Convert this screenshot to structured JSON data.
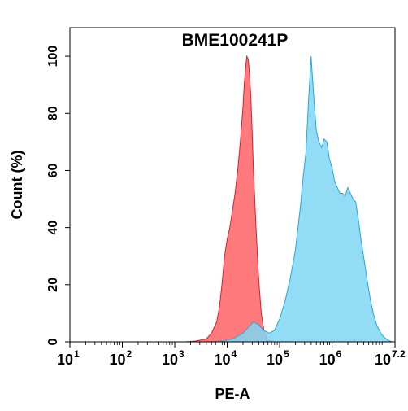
{
  "chart_data": {
    "type": "area",
    "title": "BME100241P",
    "xlabel": "PE-A",
    "ylabel": "Count  (%)",
    "xscale": "log",
    "xlim": [
      10,
      15848931.9
    ],
    "ylim": [
      0,
      110
    ],
    "grid": false,
    "legend": "none",
    "yticks": [
      {
        "value": 0,
        "label": "0"
      },
      {
        "value": 20,
        "label": "20"
      },
      {
        "value": 40,
        "label": "40"
      },
      {
        "value": 60,
        "label": "60"
      },
      {
        "value": 80,
        "label": "80"
      },
      {
        "value": 100,
        "label": "100"
      }
    ],
    "xticks": [
      {
        "value": 10,
        "base": "10",
        "exp": "1"
      },
      {
        "value": 100,
        "base": "10",
        "exp": "2"
      },
      {
        "value": 1000,
        "base": "10",
        "exp": "3"
      },
      {
        "value": 10000,
        "base": "10",
        "exp": "4"
      },
      {
        "value": 100000,
        "base": "10",
        "exp": "5"
      },
      {
        "value": 1000000,
        "base": "10",
        "exp": "6"
      },
      {
        "value": 15848931.9,
        "base": "10",
        "exp": "7.2"
      }
    ],
    "series": [
      {
        "color": "#ff6b6e",
        "stroke": "#d81e2c",
        "x": [
          1585,
          2512,
          3981,
          5012,
          6310,
          7079,
          7943,
          8913,
          10000,
          11220,
          12589,
          14125,
          15849,
          17783,
          19953,
          21135,
          22387,
          23714,
          25119,
          26607,
          28184,
          29854,
          31623,
          35481,
          39811,
          44668,
          50119,
          56234,
          63096,
          79433
        ],
        "y": [
          0,
          0.3,
          1,
          3,
          7,
          12,
          20,
          30,
          36,
          40,
          46,
          52,
          60,
          70,
          82,
          90,
          96,
          100,
          99,
          94,
          86,
          74,
          60,
          40,
          22,
          10,
          4,
          1.5,
          0.5,
          0
        ]
      },
      {
        "color": "#7fd6f5",
        "stroke": "#22aad8",
        "x": [
          3981,
          7943,
          12589,
          15849,
          19953,
          25119,
          31623,
          39811,
          50119,
          63096,
          79433,
          100000,
          125893,
          158489,
          199526,
          251189,
          281838,
          316228,
          354813,
          398107,
          446684,
          501187,
          562341,
          630957,
          707946,
          794328,
          891251,
          1000000,
          1122018,
          1258925,
          1412538,
          1584893,
          1778279,
          1995262,
          2238721,
          2511886,
          2818383,
          3162278,
          3548134,
          3981072,
          4466836,
          5011872,
          5623413,
          6309573,
          7079458,
          7943282,
          8912509,
          10000000,
          11220185,
          12589254,
          14125375
        ],
        "y": [
          0,
          0.3,
          1,
          2,
          3,
          5,
          7,
          6,
          4,
          3,
          4,
          8,
          14,
          22,
          32,
          48,
          58,
          66,
          84,
          100,
          86,
          74,
          70,
          68,
          71,
          70,
          64,
          61,
          56,
          54,
          52,
          52,
          51,
          54,
          52,
          50,
          49,
          43,
          36,
          30,
          24,
          18,
          13,
          9,
          6,
          4,
          2.5,
          1.5,
          0.8,
          0.3,
          0
        ]
      }
    ]
  }
}
